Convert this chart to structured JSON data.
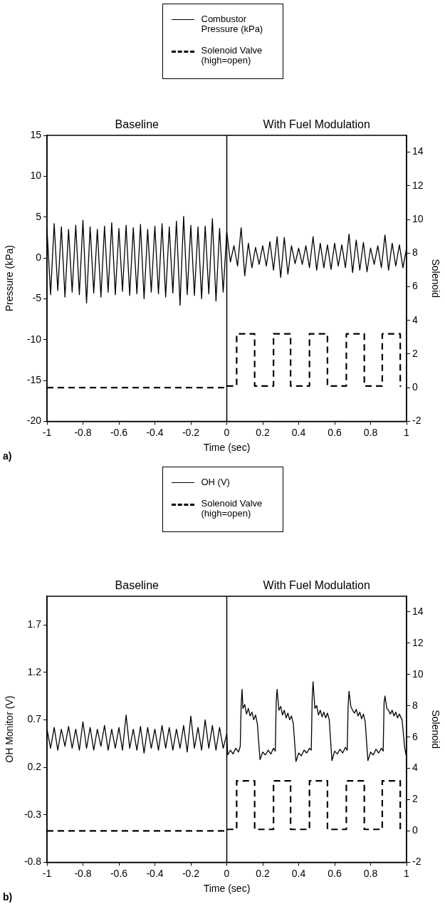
{
  "chart_data": [
    {
      "type": "line",
      "title": "a)",
      "xlabel": "Time (sec)",
      "ylabel": "Pressure (kPa)",
      "y2label": "Solenoid",
      "annotations": [
        "Baseline",
        "With Fuel Modulation"
      ],
      "xlim": [
        -1,
        1
      ],
      "xticks": [
        -1,
        -0.8,
        -0.6,
        -0.4,
        -0.2,
        0,
        0.2,
        0.4,
        0.6,
        0.8,
        1
      ],
      "ylim": [
        -20,
        15
      ],
      "yticks": [
        -20,
        -15,
        -10,
        -5,
        0,
        5,
        10,
        15
      ],
      "y2lim": [
        -2,
        15
      ],
      "y2ticks": [
        -2,
        0,
        2,
        4,
        6,
        8,
        10,
        12,
        14
      ],
      "grid": false,
      "legend": "top",
      "marker": "none",
      "ref_lines": [
        {
          "axis": "x",
          "value": 0,
          "color": "#000000"
        }
      ],
      "series": [
        {
          "name": "Combustor Pressure (kPa)",
          "color": "#000000",
          "line_style": "solid",
          "x": [
            -1,
            -0.98,
            -0.96,
            -0.94,
            -0.92,
            -0.9,
            -0.88,
            -0.86,
            -0.84,
            -0.82,
            -0.8,
            -0.78,
            -0.76,
            -0.74,
            -0.72,
            -0.7,
            -0.68,
            -0.66,
            -0.64,
            -0.62,
            -0.6,
            -0.58,
            -0.56,
            -0.54,
            -0.52,
            -0.5,
            -0.48,
            -0.46,
            -0.44,
            -0.42,
            -0.4,
            -0.38,
            -0.36,
            -0.34,
            -0.32,
            -0.3,
            -0.28,
            -0.26,
            -0.24,
            -0.22,
            -0.2,
            -0.18,
            -0.16,
            -0.14,
            -0.12,
            -0.1,
            -0.08,
            -0.06,
            -0.04,
            -0.02,
            0,
            0.02,
            0.04,
            0.06,
            0.08,
            0.1,
            0.12,
            0.14,
            0.16,
            0.18,
            0.2,
            0.22,
            0.24,
            0.26,
            0.28,
            0.3,
            0.32,
            0.34,
            0.36,
            0.38,
            0.4,
            0.42,
            0.44,
            0.46,
            0.48,
            0.5,
            0.52,
            0.54,
            0.56,
            0.58,
            0.6,
            0.62,
            0.64,
            0.66,
            0.68,
            0.7,
            0.72,
            0.74,
            0.76,
            0.78,
            0.8,
            0.82,
            0.84,
            0.86,
            0.88,
            0.9,
            0.92,
            0.94,
            0.96,
            0.98,
            1
          ],
          "values": [
            3.5,
            -4.5,
            4.2,
            -4,
            3.8,
            -4.8,
            3.5,
            -4.2,
            4,
            -4.5,
            4.6,
            -5.5,
            3.8,
            -4.3,
            3.5,
            -4.8,
            3.9,
            -4.2,
            4.3,
            -4.5,
            3.6,
            -4.1,
            4,
            -4.6,
            3.7,
            -4.4,
            4.1,
            -5,
            3.5,
            -4.2,
            3.9,
            -4.4,
            4.2,
            -4.8,
            3.8,
            -4.3,
            4.5,
            -5.8,
            5.1,
            -4.5,
            4,
            -4.6,
            3.8,
            -5,
            3.9,
            -4.4,
            4.8,
            -5.3,
            3.6,
            -4.2,
            3.2,
            -0.5,
            1.5,
            -1,
            3.7,
            -2.2,
            1.8,
            -1.2,
            1.3,
            -0.8,
            1.5,
            -1,
            2,
            -1.5,
            2.6,
            -2.4,
            2.5,
            -2,
            1.5,
            -0.7,
            1.2,
            -0.8,
            1.5,
            -1.2,
            2.6,
            -1.5,
            1.8,
            -1.2,
            1.6,
            -1.4,
            1.8,
            -1,
            1.6,
            -1.2,
            2.9,
            -1.8,
            2.2,
            -1.5,
            1.9,
            -1.7,
            1.2,
            -0.8,
            1.5,
            -1.2,
            2.8,
            -1.5,
            1.8,
            -1,
            1.6,
            -1.2,
            1.2
          ]
        },
        {
          "name": "Solenoid Valve (high=open)",
          "color": "#000000",
          "line_style": "dashed",
          "axis": "y2",
          "x": [
            -1,
            0,
            0,
            0.055,
            0.055,
            0.155,
            0.155,
            0.26,
            0.26,
            0.355,
            0.355,
            0.46,
            0.46,
            0.56,
            0.56,
            0.665,
            0.665,
            0.765,
            0.765,
            0.865,
            0.865,
            0.965,
            0.965,
            0.97
          ],
          "values": [
            0,
            0,
            0.1,
            0.1,
            3.2,
            3.2,
            0.1,
            0.1,
            3.2,
            3.2,
            0.1,
            0.1,
            3.2,
            3.2,
            0.1,
            0.1,
            3.2,
            3.2,
            0.1,
            0.1,
            3.2,
            3.2,
            0.1,
            0.1
          ]
        }
      ]
    },
    {
      "type": "line",
      "title": "b)",
      "xlabel": "Time (sec)",
      "ylabel": "OH Monitor (V)",
      "y2label": "Solenoid",
      "annotations": [
        "Baseline",
        "With Fuel Modulation"
      ],
      "xlim": [
        -1,
        1
      ],
      "xticks": [
        -1,
        -0.8,
        -0.6,
        -0.4,
        -0.2,
        0,
        0.2,
        0.4,
        0.6,
        0.8,
        1
      ],
      "ylim": [
        -0.8,
        2.0
      ],
      "yticks": [
        -0.8,
        -0.3,
        0.2,
        0.7,
        1.2,
        1.7
      ],
      "y2lim": [
        -2,
        15
      ],
      "y2ticks": [
        -2,
        0,
        2,
        4,
        6,
        8,
        10,
        12,
        14
      ],
      "grid": false,
      "legend": "top",
      "marker": "none",
      "ref_lines": [
        {
          "axis": "x",
          "value": 0,
          "color": "#000000"
        }
      ],
      "series": [
        {
          "name": "OH (V)",
          "color": "#000000",
          "line_style": "solid",
          "x": [
            -1,
            -0.98,
            -0.96,
            -0.94,
            -0.92,
            -0.9,
            -0.88,
            -0.86,
            -0.84,
            -0.82,
            -0.8,
            -0.78,
            -0.76,
            -0.74,
            -0.72,
            -0.7,
            -0.68,
            -0.66,
            -0.64,
            -0.62,
            -0.6,
            -0.58,
            -0.56,
            -0.54,
            -0.52,
            -0.5,
            -0.48,
            -0.46,
            -0.44,
            -0.42,
            -0.4,
            -0.38,
            -0.36,
            -0.34,
            -0.32,
            -0.3,
            -0.28,
            -0.26,
            -0.24,
            -0.22,
            -0.2,
            -0.18,
            -0.16,
            -0.14,
            -0.12,
            -0.1,
            -0.08,
            -0.06,
            -0.04,
            -0.02,
            0,
            0.005,
            0.02,
            0.035,
            0.05,
            0.065,
            0.075,
            0.08,
            0.085,
            0.09,
            0.1,
            0.11,
            0.12,
            0.13,
            0.14,
            0.15,
            0.16,
            0.17,
            0.185,
            0.2,
            0.215,
            0.23,
            0.245,
            0.26,
            0.27,
            0.275,
            0.28,
            0.29,
            0.3,
            0.31,
            0.32,
            0.33,
            0.34,
            0.35,
            0.36,
            0.37,
            0.385,
            0.4,
            0.415,
            0.43,
            0.445,
            0.46,
            0.47,
            0.475,
            0.48,
            0.49,
            0.5,
            0.51,
            0.52,
            0.53,
            0.54,
            0.55,
            0.56,
            0.57,
            0.585,
            0.6,
            0.615,
            0.63,
            0.645,
            0.66,
            0.67,
            0.675,
            0.68,
            0.69,
            0.7,
            0.71,
            0.72,
            0.73,
            0.74,
            0.75,
            0.76,
            0.77,
            0.785,
            0.8,
            0.815,
            0.83,
            0.845,
            0.86,
            0.87,
            0.875,
            0.88,
            0.89,
            0.9,
            0.91,
            0.92,
            0.93,
            0.94,
            0.95,
            0.96,
            0.975,
            0.99,
            1
          ],
          "values": [
            0.6,
            0.4,
            0.62,
            0.38,
            0.6,
            0.42,
            0.63,
            0.4,
            0.6,
            0.38,
            0.68,
            0.4,
            0.62,
            0.38,
            0.6,
            0.42,
            0.64,
            0.38,
            0.6,
            0.4,
            0.62,
            0.38,
            0.75,
            0.4,
            0.6,
            0.38,
            0.63,
            0.35,
            0.62,
            0.4,
            0.6,
            0.38,
            0.64,
            0.4,
            0.62,
            0.38,
            0.6,
            0.4,
            0.64,
            0.36,
            0.74,
            0.4,
            0.62,
            0.38,
            0.7,
            0.4,
            0.64,
            0.38,
            0.62,
            0.4,
            0.55,
            0.33,
            0.38,
            0.34,
            0.4,
            0.36,
            0.42,
            0.85,
            1.02,
            0.82,
            0.86,
            0.76,
            0.82,
            0.74,
            0.78,
            0.7,
            0.75,
            0.66,
            0.28,
            0.36,
            0.33,
            0.38,
            0.34,
            0.4,
            0.37,
            0.9,
            1.02,
            0.8,
            0.84,
            0.75,
            0.8,
            0.72,
            0.77,
            0.7,
            0.74,
            0.66,
            0.26,
            0.35,
            0.32,
            0.38,
            0.35,
            0.4,
            0.38,
            0.92,
            1.1,
            0.82,
            0.85,
            0.75,
            0.8,
            0.73,
            0.78,
            0.72,
            0.77,
            0.7,
            0.27,
            0.37,
            0.34,
            0.39,
            0.35,
            0.41,
            0.38,
            0.85,
            1.0,
            0.84,
            0.8,
            0.77,
            0.81,
            0.74,
            0.78,
            0.71,
            0.76,
            0.68,
            0.27,
            0.36,
            0.33,
            0.39,
            0.35,
            0.4,
            0.37,
            0.88,
            0.95,
            0.82,
            0.8,
            0.76,
            0.8,
            0.74,
            0.78,
            0.72,
            0.76,
            0.7,
            0.4,
            0.3
          ]
        },
        {
          "name": "Solenoid Valve (high=open)",
          "color": "#000000",
          "line_style": "dashed",
          "axis": "y2",
          "x": [
            -1,
            0,
            0,
            0.055,
            0.055,
            0.155,
            0.155,
            0.26,
            0.26,
            0.355,
            0.355,
            0.46,
            0.46,
            0.56,
            0.56,
            0.665,
            0.665,
            0.765,
            0.765,
            0.865,
            0.865,
            0.965,
            0.965,
            0.97
          ],
          "values": [
            0,
            0,
            0.1,
            0.1,
            3.2,
            3.2,
            0.1,
            0.1,
            3.2,
            3.2,
            0.1,
            0.1,
            3.2,
            3.2,
            0.1,
            0.1,
            3.2,
            3.2,
            0.1,
            0.1,
            3.2,
            3.2,
            0.1,
            0.1
          ]
        }
      ]
    }
  ]
}
